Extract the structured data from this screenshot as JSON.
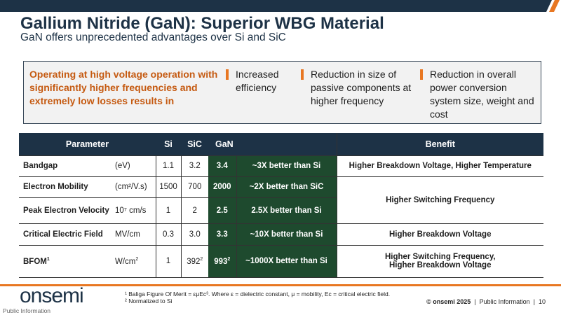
{
  "header": {
    "title": "Gallium Nitride (GaN): Superior WBG Material",
    "subtitle": "GaN offers unprecedented advantages over Si and SiC"
  },
  "callout": {
    "lead": "Operating at high voltage operation with significantly higher frequencies and extremely low losses results in",
    "benefits": [
      "Increased efficiency",
      "Reduction in size of passive components at higher frequency",
      "Reduction in overall power conversion system size, weight and cost"
    ]
  },
  "table": {
    "headers": [
      "Parameter",
      "Si",
      "SiC",
      "GaN",
      "Benefit"
    ],
    "rows": [
      {
        "param": "Bandgap",
        "unit": "(eV)",
        "si": "1.1",
        "sic": "3.2",
        "gan": "3.4",
        "cmp": "~3X better than Si",
        "benefit": "Higher Breakdown Voltage, Higher Temperature"
      },
      {
        "param": "Electron Mobility",
        "unit": "(cm²/V.s)",
        "si": "1500",
        "sic": "700",
        "gan": "2000",
        "cmp": "~2X better than SiC",
        "benefit": "Higher Switching Frequency"
      },
      {
        "param": "Peak Electron Velocity",
        "unit": "10⁷ cm/s",
        "si": "1",
        "sic": "2",
        "gan": "2.5",
        "cmp": "2.5X better than Si"
      },
      {
        "param": "Critical Electric Field",
        "unit": "MV/cm",
        "si": "0.3",
        "sic": "3.0",
        "gan": "3.3",
        "cmp": "~10X better than Si",
        "benefit": "Higher  Breakdown Voltage"
      },
      {
        "param": "BFOM",
        "param_sup": "1",
        "unit": "W/cm",
        "unit_sup": "2",
        "si": "1",
        "sic": "392",
        "sic_sup": "2",
        "gan": "993",
        "gan_sup": "2",
        "cmp": "~1000X better than Si",
        "benefit_lines": [
          "Higher Switching Frequency,",
          "Higher Breakdown Voltage"
        ]
      }
    ]
  },
  "footer": {
    "logo": "onsemi",
    "public_info": "Public Information",
    "footnote1": "¹ Baliga Figure Of Merit = εμEc³. Where ε = dielectric constant, μ = mobility, Ec = critical electric field.",
    "footnote2": "² Normalized to Si",
    "copyright": "© onsemi 2025",
    "classification": "Public Information",
    "page": "10"
  },
  "colors": {
    "navy": "#1d3246",
    "orange": "#e87722",
    "gan_green": "#1e4a2e"
  }
}
